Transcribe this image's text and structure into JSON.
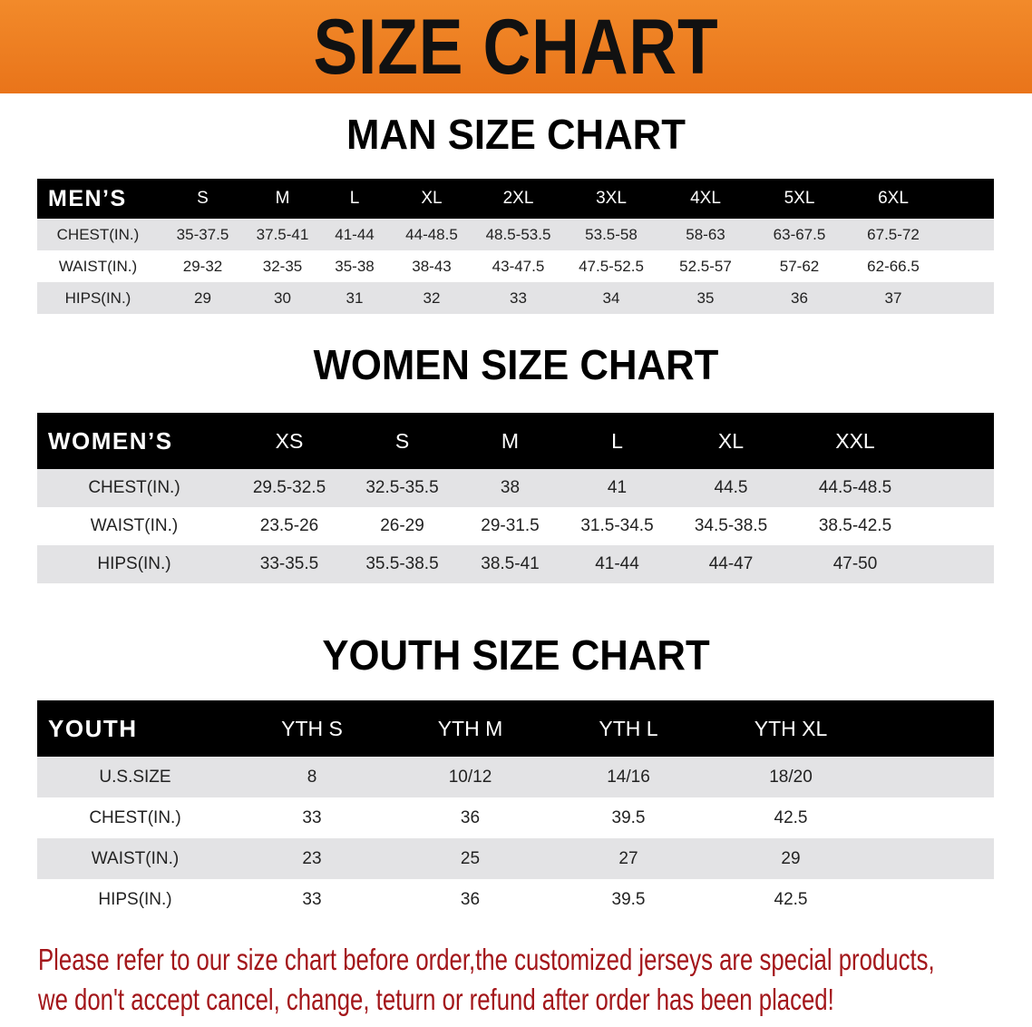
{
  "title": "SIZE CHART",
  "men": {
    "section_title": "MAN SIZE CHART",
    "header": [
      "MEN’S",
      "S",
      "M",
      "L",
      "XL",
      "2XL",
      "3XL",
      "4XL",
      "5XL",
      "6XL"
    ],
    "rows": [
      [
        "CHEST(IN.)",
        "35-37.5",
        "37.5-41",
        "41-44",
        "44-48.5",
        "48.5-53.5",
        "53.5-58",
        "58-63",
        "63-67.5",
        "67.5-72"
      ],
      [
        "WAIST(IN.)",
        "29-32",
        "32-35",
        "35-38",
        "38-43",
        "43-47.5",
        "47.5-52.5",
        "52.5-57",
        "57-62",
        "62-66.5"
      ],
      [
        "HIPS(IN.)",
        "29",
        "30",
        "31",
        "32",
        "33",
        "34",
        "35",
        "36",
        "37"
      ]
    ]
  },
  "women": {
    "section_title": "WOMEN SIZE CHART",
    "header": [
      "WOMEN’S",
      "XS",
      "S",
      "M",
      "L",
      "XL",
      "XXL"
    ],
    "rows": [
      [
        "CHEST(IN.)",
        "29.5-32.5",
        "32.5-35.5",
        "38",
        "41",
        "44.5",
        "44.5-48.5"
      ],
      [
        "WAIST(IN.)",
        "23.5-26",
        "26-29",
        "29-31.5",
        "31.5-34.5",
        "34.5-38.5",
        "38.5-42.5"
      ],
      [
        "HIPS(IN.)",
        "33-35.5",
        "35.5-38.5",
        "38.5-41",
        "41-44",
        "44-47",
        "47-50"
      ]
    ]
  },
  "youth": {
    "section_title": "YOUTH SIZE CHART",
    "header": [
      "YOUTH",
      "YTH S",
      "YTH M",
      "YTH L",
      "YTH XL"
    ],
    "rows": [
      [
        "U.S.SIZE",
        "8",
        "10/12",
        "14/16",
        "18/20"
      ],
      [
        "CHEST(IN.)",
        "33",
        "36",
        "39.5",
        "42.5"
      ],
      [
        "WAIST(IN.)",
        "23",
        "25",
        "27",
        "29"
      ],
      [
        "HIPS(IN.)",
        "33",
        "36",
        "39.5",
        "42.5"
      ]
    ]
  },
  "notice": {
    "line1": "Please refer to our size chart before order,the customized jerseys are special products,",
    "line2": "we don't accept cancel, change, teturn or refund after order has been placed!"
  },
  "colors": {
    "banner": "#ec7d22",
    "notice": "#a3161a",
    "header_bg": "#000000",
    "row_gray": "#e3e3e5"
  }
}
